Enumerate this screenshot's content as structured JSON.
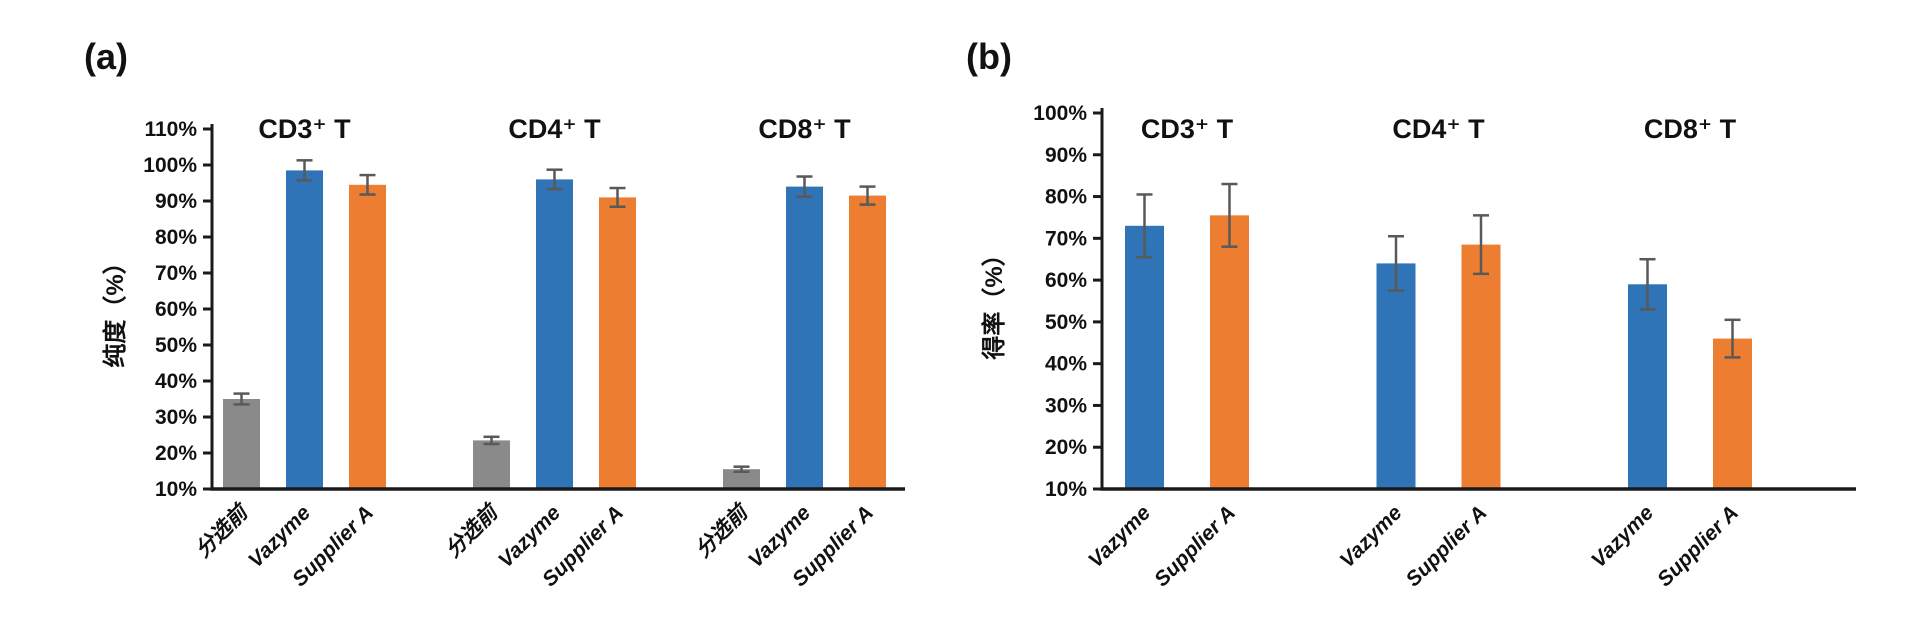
{
  "panels": [
    {
      "label": "(a)"
    },
    {
      "label": "(b)"
    }
  ],
  "colors": {
    "bar_blue": "#2E74B6",
    "bar_orange": "#ED7D31",
    "bar_gray": "#8A8A8A",
    "error_bar": "#595959",
    "axis": "#1A1A1A",
    "text": "#111111",
    "background": "#FFFFFF"
  },
  "chart_data": [
    {
      "type": "bar",
      "panel": "(a)",
      "title": "",
      "ylabel": "纯度（%）",
      "xlabel": "",
      "ylim": [
        10,
        110
      ],
      "ytick_step": 10,
      "ytick_labels": [
        "10%",
        "20%",
        "30%",
        "40%",
        "50%",
        "60%",
        "70%",
        "80%",
        "90%",
        "100%",
        "110%"
      ],
      "categories": [
        "CD3⁺ T",
        "CD4⁺ T",
        "CD8⁺ T"
      ],
      "series": [
        {
          "name": "分选前",
          "color": "#8A8A8A",
          "values": [
            35.0,
            23.5,
            15.5
          ],
          "errors": [
            1.5,
            1.0,
            0.7
          ]
        },
        {
          "name": "Vazyme",
          "color": "#2E74B6",
          "values": [
            98.5,
            96.0,
            94.0
          ],
          "errors": [
            2.8,
            2.7,
            2.8
          ]
        },
        {
          "name": "Supplier A",
          "color": "#ED7D31",
          "values": [
            94.5,
            91.0,
            91.5
          ],
          "errors": [
            2.7,
            2.6,
            2.5
          ]
        }
      ],
      "x_tick_labels": [
        "分选前",
        "Vazyme",
        "Supplier A",
        "分选前",
        "Vazyme",
        "Supplier A",
        "分选前",
        "Vazyme",
        "Supplier A"
      ],
      "legend": "none",
      "grid": false
    },
    {
      "type": "bar",
      "panel": "(b)",
      "title": "",
      "ylabel": "得率（%）",
      "xlabel": "",
      "ylim": [
        10,
        100
      ],
      "ytick_step": 10,
      "ytick_labels": [
        "10%",
        "20%",
        "30%",
        "40%",
        "50%",
        "60%",
        "70%",
        "80%",
        "90%",
        "100%"
      ],
      "categories": [
        "CD3⁺ T",
        "CD4⁺ T",
        "CD8⁺ T"
      ],
      "series": [
        {
          "name": "Vazyme",
          "color": "#2E74B6",
          "values": [
            73.0,
            64.0,
            59.0
          ],
          "errors": [
            7.5,
            6.5,
            6.0
          ]
        },
        {
          "name": "Supplier A",
          "color": "#ED7D31",
          "values": [
            75.5,
            68.5,
            46.0
          ],
          "errors": [
            7.5,
            7.0,
            4.5
          ]
        }
      ],
      "x_tick_labels": [
        "Vazyme",
        "Supplier A",
        "Vazyme",
        "Supplier A",
        "Vazyme",
        "Supplier A"
      ],
      "legend": "none",
      "grid": false
    }
  ]
}
